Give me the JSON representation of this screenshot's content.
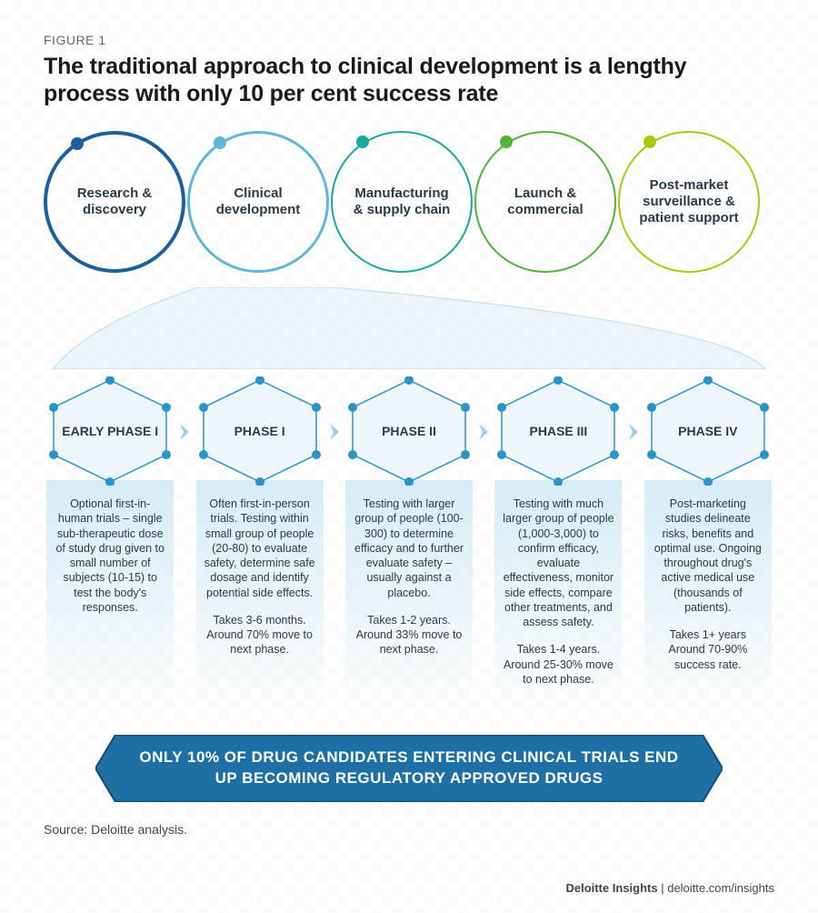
{
  "figure_label": "FIGURE 1",
  "title": "The traditional approach to clinical development is a lengthy process with only 10 per cent success rate",
  "circle_colors": [
    "#1b5f9e",
    "#5fb6d9",
    "#1aa79c",
    "#4fb338",
    "#a8c90f"
  ],
  "circle_labels": [
    "Research & discovery",
    "Clinical development",
    "Manufacturing & supply chain",
    "Launch & commercial",
    "Post-market surveillance & patient support"
  ],
  "circle_xpositions": [
    0,
    158,
    316,
    474,
    632
  ],
  "hex_stroke": "#2a93c7",
  "hex_fill": "#eef6fb",
  "hex_dot": "#2a93c7",
  "arrow_color": "#99cfe6",
  "phases": [
    {
      "name": "EARLY PHASE I",
      "desc": "Optional first-in-human trials – single sub-therapeutic dose of study drug given to small number of subjects (10-15) to test the body's responses.",
      "stats": ""
    },
    {
      "name": "PHASE I",
      "desc": "Often first-in-person trials. Testing within small group of people (20-80) to evaluate safety, determine safe dosage and identify potential side effects.",
      "stats": "Takes 3-6 months. Around 70% move to next phase."
    },
    {
      "name": "PHASE II",
      "desc": "Testing with larger group of people (100-300) to determine efficacy and to further evaluate safety – usually against a placebo.",
      "stats": "Takes 1-2 years. Around 33% move to next phase."
    },
    {
      "name": "PHASE III",
      "desc": "Testing with much larger group of people (1,000-3,000) to confirm efficacy, evaluate effectiveness, monitor side effects, compare other treatments, and assess safety.",
      "stats": "Takes 1-4 years. Around 25-30% move to next phase."
    },
    {
      "name": "PHASE IV",
      "desc": "Post-marketing studies delineate risks, benefits and optimal use. Ongoing throughout drug's active medical use (thousands of patients).",
      "stats": "Takes 1+ years Around 70-90% success rate."
    }
  ],
  "banner_text": "ONLY 10% OF DRUG CANDIDATES ENTERING CLINICAL TRIALS END UP BECOMING REGULATORY APPROVED DRUGS",
  "banner_fill": "#1e6fa3",
  "banner_stroke": "#134c73",
  "source": "Source: Deloitte analysis.",
  "credit_bold": "Deloitte Insights",
  "credit_rest": " | deloitte.com/insights"
}
